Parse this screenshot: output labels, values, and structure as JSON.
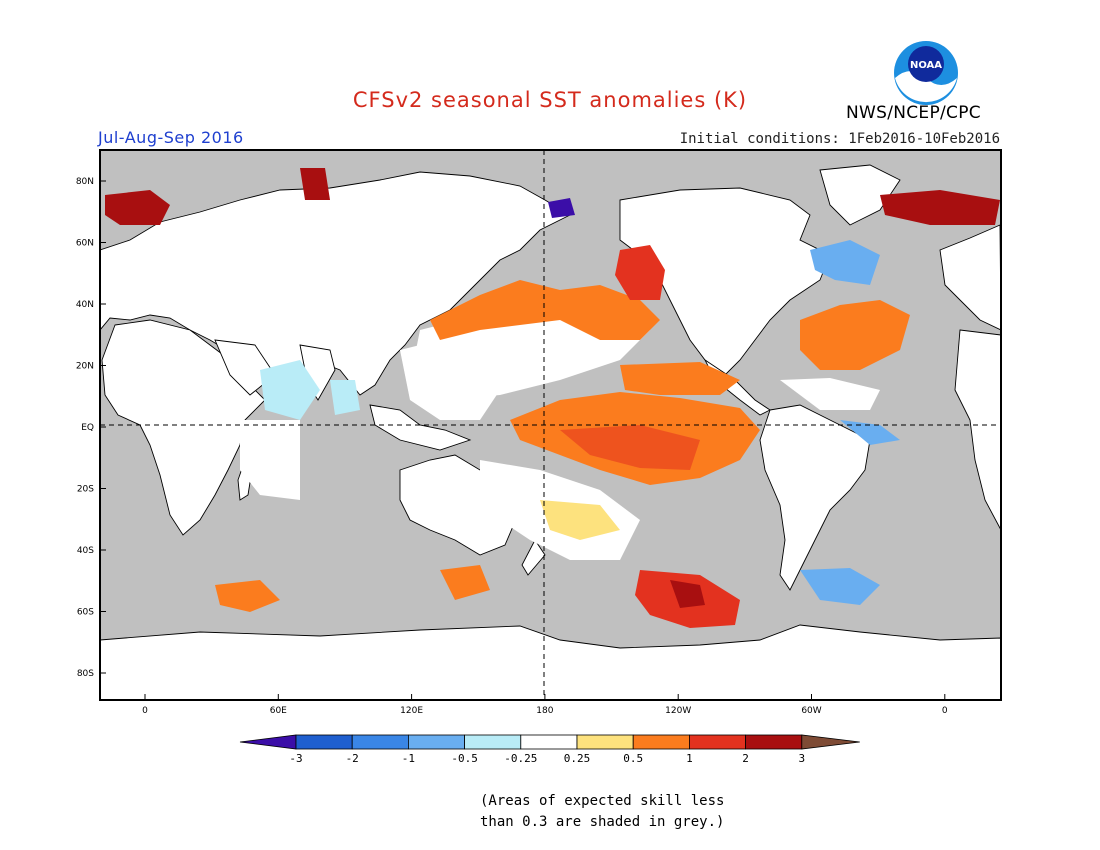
{
  "header": {
    "title": "CFSv2 seasonal SST anomalies (K)",
    "period": "Jul-Aug-Sep 2016",
    "initial_conditions": "Initial conditions: 1Feb2016-10Feb2016",
    "agency": "NWS/NCEP/CPC",
    "logo_text": "NOAA",
    "logo_icon": "noaa-logo-icon"
  },
  "map": {
    "lat_labels": [
      "80N",
      "60N",
      "40N",
      "20N",
      "EQ",
      "20S",
      "40S",
      "60S",
      "80S"
    ],
    "lon_labels": [
      "0",
      "60E",
      "120E",
      "180",
      "120W",
      "60W",
      "0"
    ],
    "grey_masked": "#c0c0c0"
  },
  "colorbar": {
    "ticks": [
      "-3",
      "-2",
      "-1",
      "-0.5",
      "-0.25",
      "0.25",
      "0.5",
      "1",
      "2",
      "3"
    ],
    "colors": [
      "#3b0ea8",
      "#1f5fcf",
      "#3a86e6",
      "#69aef0",
      "#b9ecf7",
      "#ffffff",
      "#fde27e",
      "#fb7c1e",
      "#e3321f",
      "#a80f10",
      "#7e4b35"
    ]
  },
  "footnote": {
    "line1": "(Areas of expected skill less",
    "line2": "than 0.3 are shaded in grey.)"
  }
}
